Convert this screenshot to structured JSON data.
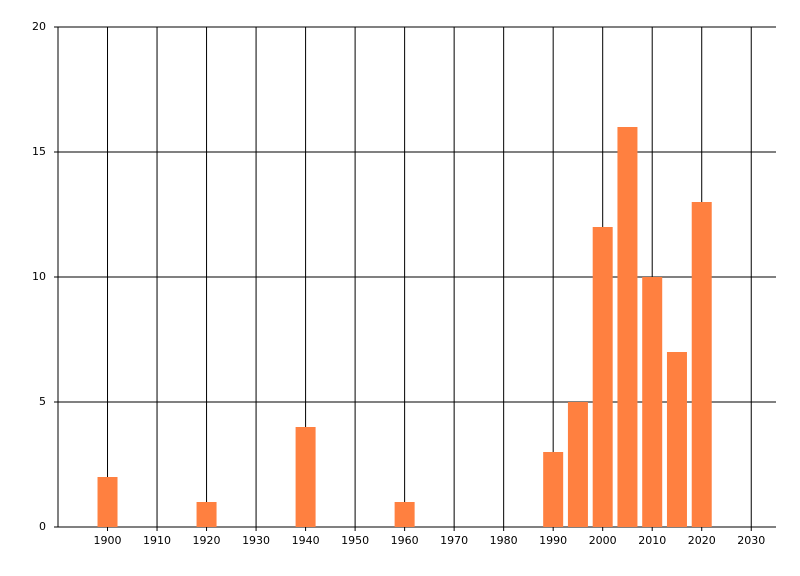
{
  "chart_data": {
    "type": "bar",
    "x": [
      1900,
      1920,
      1940,
      1960,
      1990,
      1995,
      2000,
      2005,
      2010,
      2015,
      2020
    ],
    "values": [
      2,
      1,
      4,
      1,
      3,
      5,
      12,
      16,
      10,
      7,
      13
    ],
    "color": "#ff8040",
    "xlim": [
      1890,
      2035
    ],
    "xticks": [
      1900,
      1910,
      1920,
      1930,
      1940,
      1950,
      1960,
      1970,
      1980,
      1990,
      2000,
      2010,
      2020,
      2030
    ],
    "ylim": [
      0,
      20
    ],
    "yticks": [
      0,
      5,
      10,
      15,
      20
    ],
    "grid": true
  }
}
